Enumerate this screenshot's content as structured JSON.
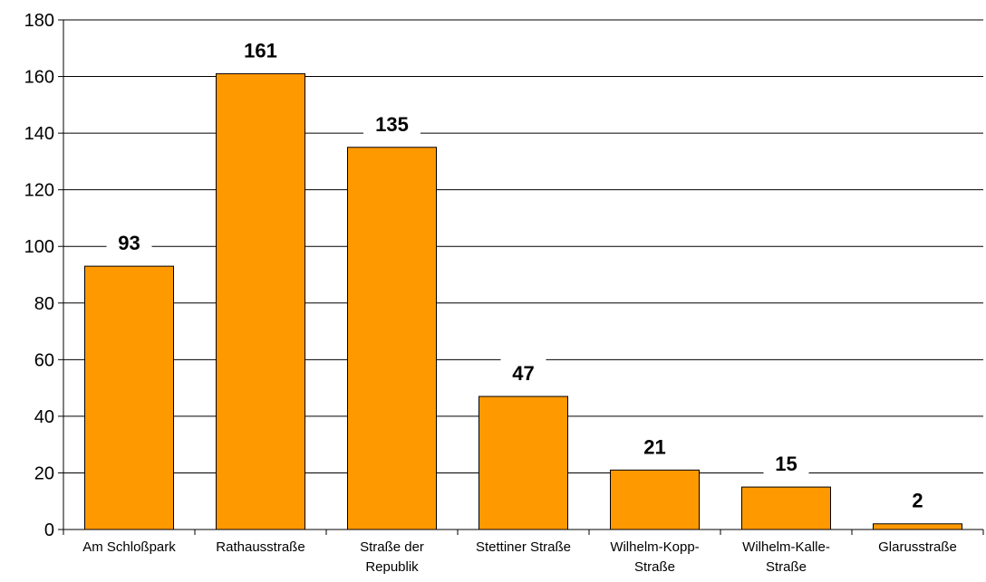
{
  "chart_data": {
    "type": "bar",
    "title": "",
    "xlabel": "",
    "ylabel": "",
    "categories": [
      [
        "Am Schloßpark"
      ],
      [
        "Rathausstraße"
      ],
      [
        "Straße der",
        "Republik"
      ],
      [
        "Stettiner Straße"
      ],
      [
        "Wilhelm-Kopp-",
        "Straße"
      ],
      [
        "Wilhelm-Kalle-",
        "Straße"
      ],
      [
        "Glarusstraße"
      ]
    ],
    "values": [
      93,
      161,
      135,
      47,
      21,
      15,
      2
    ],
    "ylim": [
      0,
      180
    ],
    "yticks": [
      0,
      20,
      40,
      60,
      80,
      100,
      120,
      140,
      160,
      180
    ],
    "grid": true,
    "legend": "none",
    "colors": {
      "bar_fill": "#FF9900",
      "bar_stroke": "#000000",
      "grid": "#000000",
      "background": "#FFFFFF"
    }
  }
}
